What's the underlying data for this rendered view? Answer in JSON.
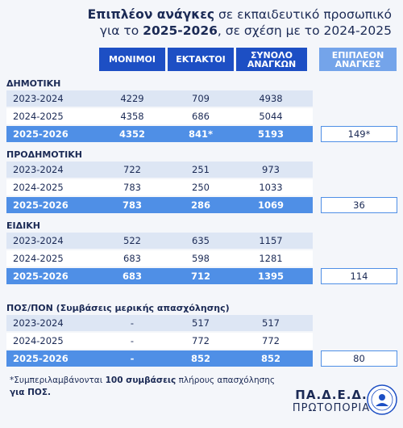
{
  "title": {
    "line1_bold": "Επιπλέον ανάγκες",
    "line1_rest": " σε εκπαιδευτικό προσωπικό",
    "line2_pre": "για το ",
    "line2_bold": "2025-2026",
    "line2_rest": ", σε σχέση με το 2024-2025"
  },
  "headers": {
    "permanent": "ΜΟΝΙΜΟΙ",
    "substitute": "ΕΚΤΑΚΤΟΙ",
    "total_1": "ΣΥΝΟΛΟ",
    "total_2": "ΑΝΑΓΚΩΝ",
    "extra_1": "ΕΠΙΠΛΕΟΝ",
    "extra_2": "ΑΝΑΓΚΕΣ"
  },
  "sections": [
    {
      "name": "ΔΗΜΟΤΙΚΗ",
      "rows": [
        {
          "year": "2023-2024",
          "permanent": "4229",
          "substitute": "709",
          "total": "4938"
        },
        {
          "year": "2024-2025",
          "permanent": "4358",
          "substitute": "686",
          "total": "5044"
        },
        {
          "year": "2025-2026",
          "permanent": "4352",
          "substitute": "841*",
          "total": "5193"
        }
      ],
      "extra": "149*"
    },
    {
      "name": "ΠΡΟΔΗΜΟΤΙΚΗ",
      "rows": [
        {
          "year": "2023-2024",
          "permanent": "722",
          "substitute": "251",
          "total": "973"
        },
        {
          "year": "2024-2025",
          "permanent": "783",
          "substitute": "250",
          "total": "1033"
        },
        {
          "year": "2025-2026",
          "permanent": "783",
          "substitute": "286",
          "total": "1069"
        }
      ],
      "extra": "36"
    },
    {
      "name": "ΕΙΔΙΚΗ",
      "rows": [
        {
          "year": "2023-2024",
          "permanent": "522",
          "substitute": "635",
          "total": "1157"
        },
        {
          "year": "2024-2025",
          "permanent": "683",
          "substitute": "598",
          "total": "1281"
        },
        {
          "year": "2025-2026",
          "permanent": "683",
          "substitute": "712",
          "total": "1395"
        }
      ],
      "extra": "114"
    },
    {
      "name": "ΠΟΣ/ΠΟΝ (Συμβάσεις μερικής απασχόλησης)",
      "rows": [
        {
          "year": "2023-2024",
          "permanent": "-",
          "substitute": "517",
          "total": "517"
        },
        {
          "year": "2024-2025",
          "permanent": "-",
          "substitute": "772",
          "total": "772"
        },
        {
          "year": "2025-2026",
          "permanent": "-",
          "substitute": "852",
          "total": "852"
        }
      ],
      "extra": "80"
    }
  ],
  "footnote": {
    "pre": "*Συμπεριλαμβάνονται ",
    "bold": "100 συμβάσεις",
    "rest": " πλήρους απασχόλησης",
    "line2": "για ΠΟΣ."
  },
  "org": {
    "name": "ΠΑ.Δ.Ε.Δ.",
    "sub": "ΠΡΩΤΟΠΟΡΙΑ"
  },
  "colors": {
    "header_dark": "#1d4fc4",
    "header_light": "#74a4ea",
    "current_row": "#4f8fe6",
    "text": "#1b2a55"
  }
}
